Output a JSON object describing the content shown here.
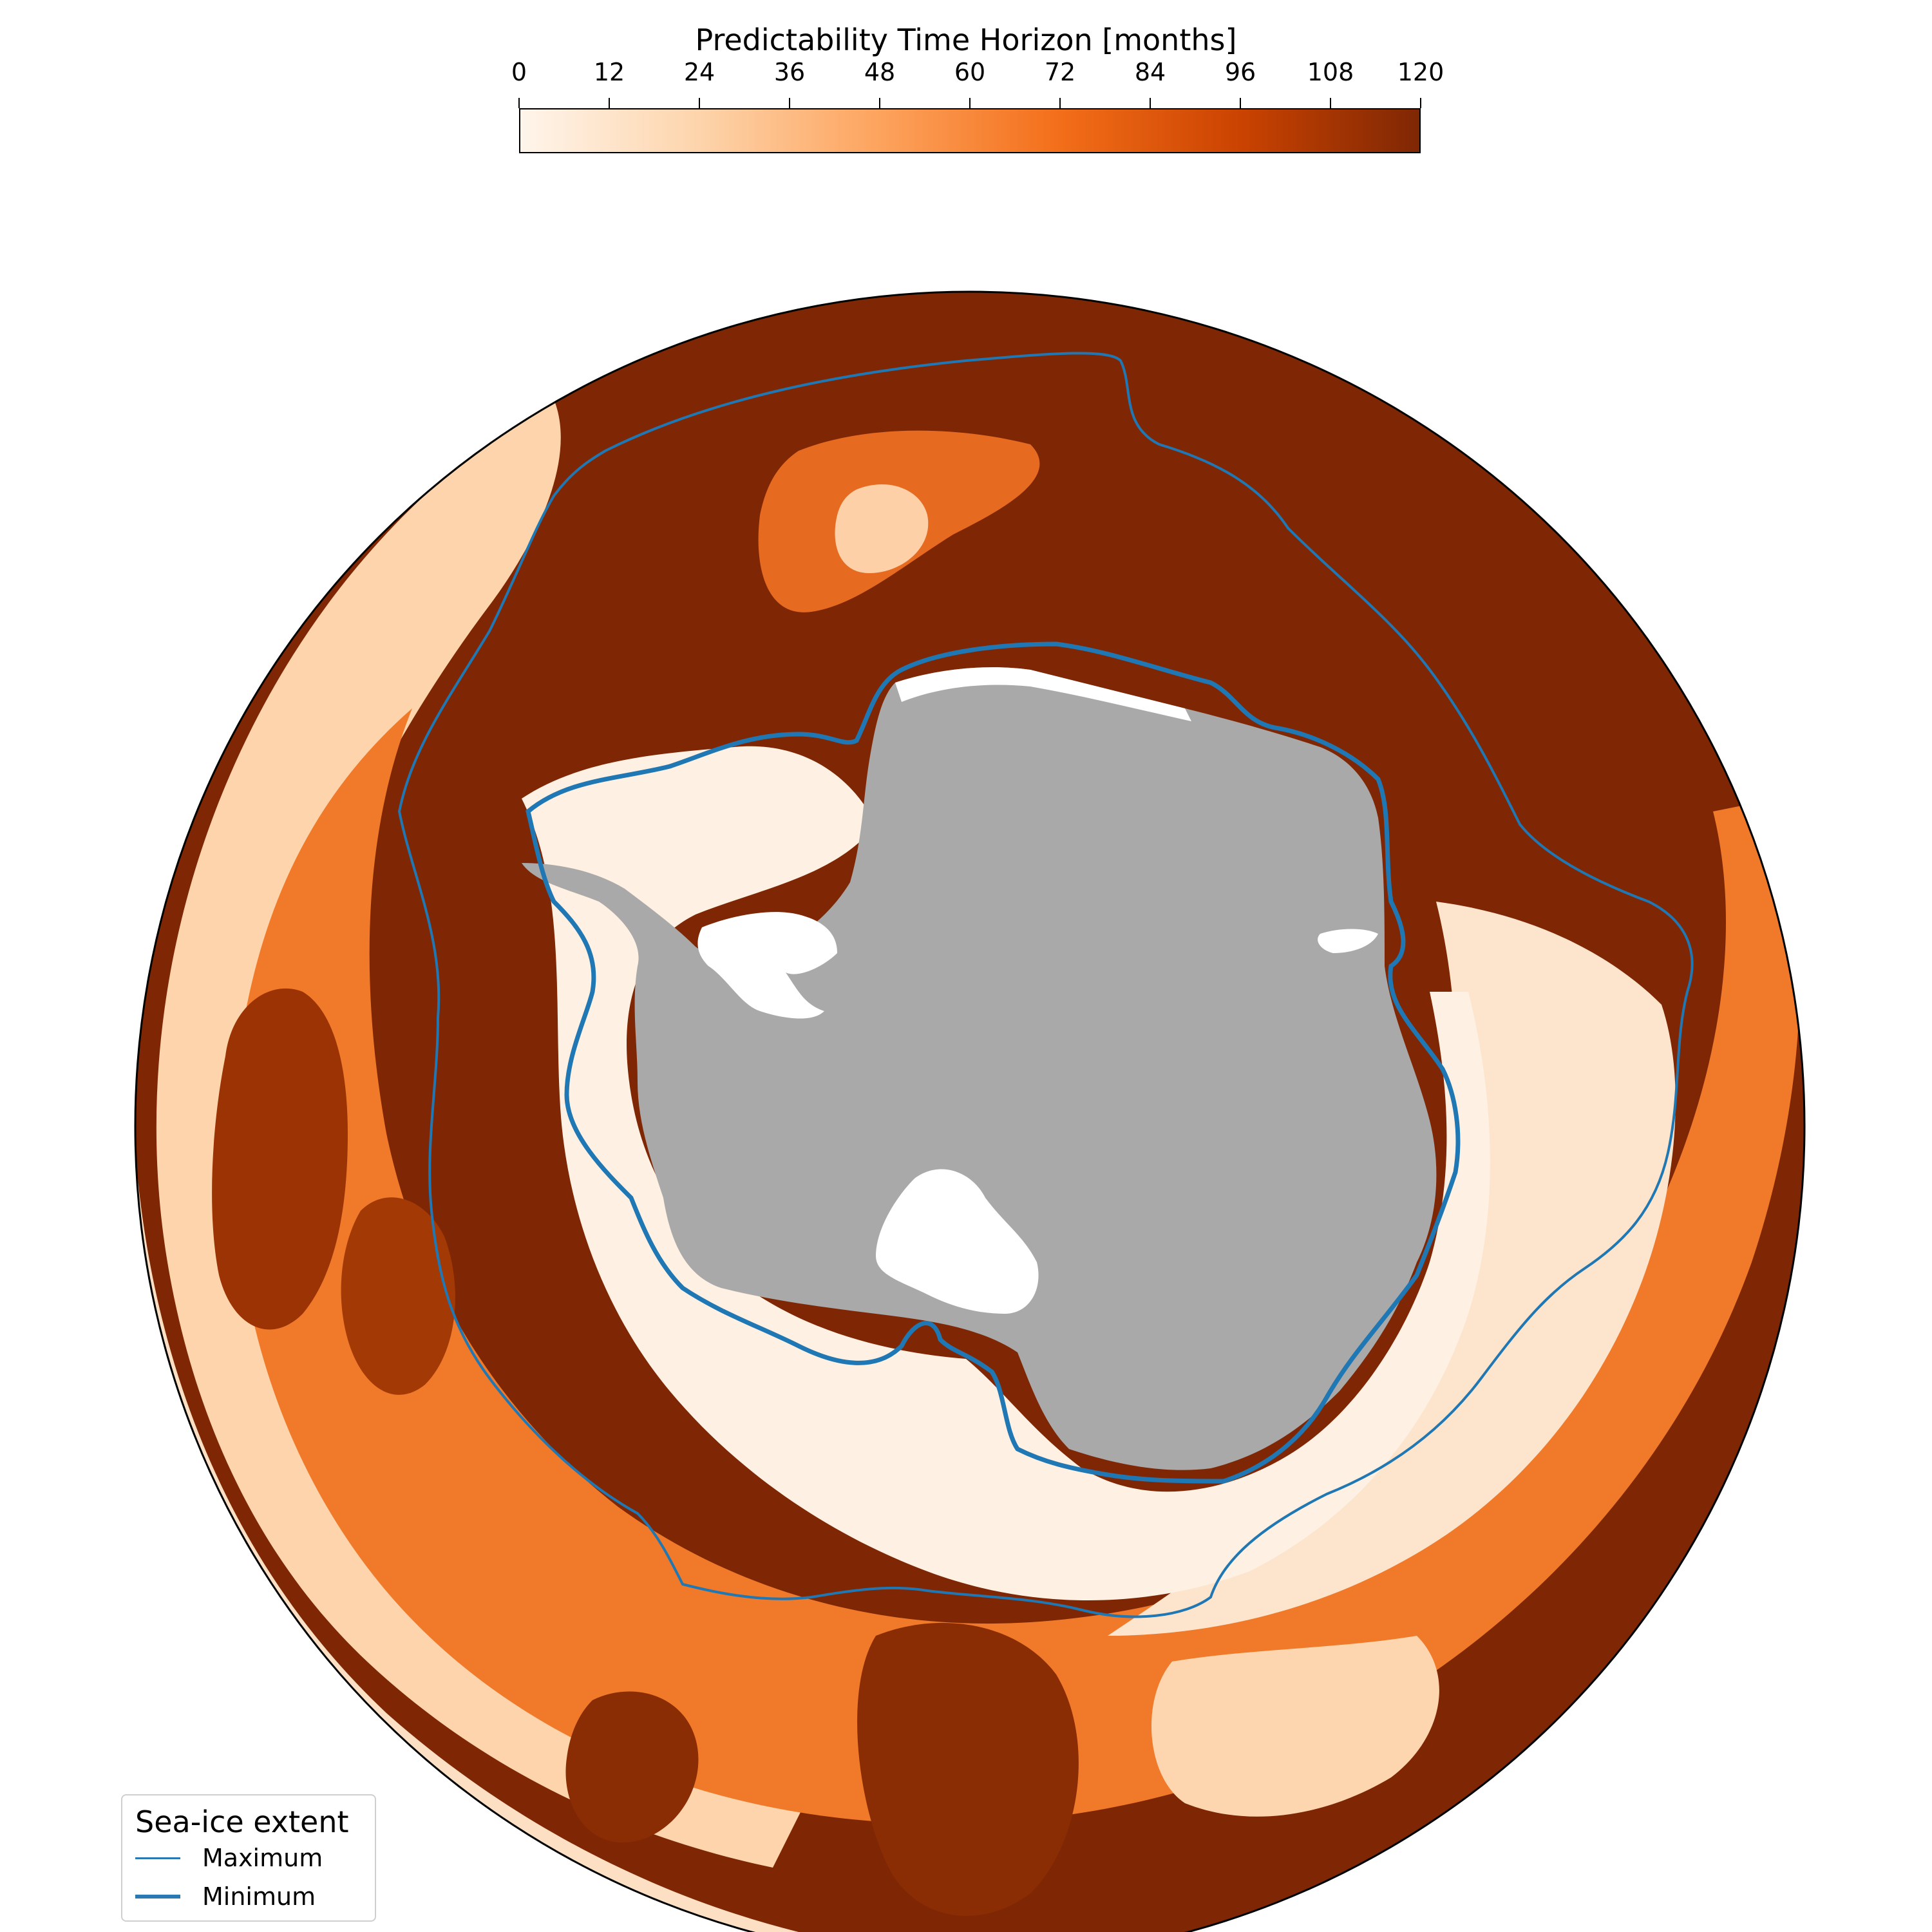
{
  "colorbar": {
    "title": "Predictability Time Horizon [months]",
    "ticks": [
      "0",
      "12",
      "24",
      "36",
      "48",
      "60",
      "72",
      "84",
      "96",
      "108",
      "120"
    ],
    "range": [
      0,
      120
    ],
    "colors": [
      "#fff5eb",
      "#fdd4ab",
      "#fda35d",
      "#f36e19",
      "#cb4301",
      "#7f2704"
    ]
  },
  "map": {
    "projection": "south-polar-stereographic",
    "ocean_default_color": "#7f2704",
    "land_color": "#a9a9a9",
    "ice_shelf_color": "#ffffff",
    "contour_color": "#1f77b4"
  },
  "legend": {
    "title": "Sea-ice extent",
    "items": [
      {
        "label": "Maximum",
        "style": "thin"
      },
      {
        "label": "Minimum",
        "style": "thick"
      }
    ]
  }
}
